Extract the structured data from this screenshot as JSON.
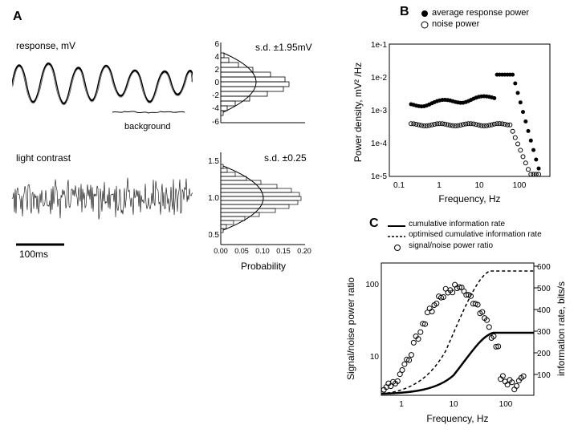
{
  "panelA": {
    "label": "A",
    "response": {
      "title": "response, mV",
      "bg_label": "background",
      "hist_title": "s.d. ±1.95mV",
      "ylim": [
        -6,
        6
      ],
      "ytick": [
        -6,
        -4,
        -2,
        0,
        2,
        4,
        6
      ],
      "xlim": [
        0,
        0.2
      ],
      "xtick": [
        "0.00",
        "0.05",
        "0.10",
        "0.15",
        "0.20"
      ]
    },
    "contrast": {
      "title": "light contrast",
      "hist_title": "s.d. ±0.25",
      "ylim": [
        0.5,
        1.5
      ],
      "ytick": [
        "0.5",
        "",
        "1.0",
        "",
        "1.5"
      ],
      "xlim": [
        0,
        0.2
      ],
      "xtick": [
        "0.00",
        "0.05",
        "0.10",
        "0.15",
        "0.20"
      ]
    },
    "scalebar": "100ms",
    "probability": "Probability"
  },
  "panelB": {
    "label": "B",
    "legend": {
      "avg": "average response power",
      "noise": "noise power"
    },
    "ylabel": "Power density, mV² /Hz",
    "xlabel": "Frequency, Hz",
    "xlim": [
      0.1,
      500
    ],
    "ylim": [
      1e-05,
      1
    ],
    "ytick": [
      "1e-5",
      "1e-4",
      "1e-3",
      "1e-2",
      "1e-1"
    ]
  },
  "panelC": {
    "label": "C",
    "legend": {
      "cum": "cumulative information rate",
      "opt": "optimised cumulative information rate",
      "snr": "signal/noise power ratio"
    },
    "ylabel_left": "Signal/noise power ratio",
    "ylabel_right": "information rate, bits/s",
    "xlabel": "Frequency, Hz",
    "xlim": [
      0.5,
      500
    ],
    "ytick_left": [
      "10",
      "100"
    ],
    "ytick_right": [
      "100",
      "200",
      "300",
      "400",
      "500",
      "600"
    ]
  },
  "colors": {
    "stroke": "#000000",
    "bg": "#ffffff",
    "gray": "#888888"
  }
}
